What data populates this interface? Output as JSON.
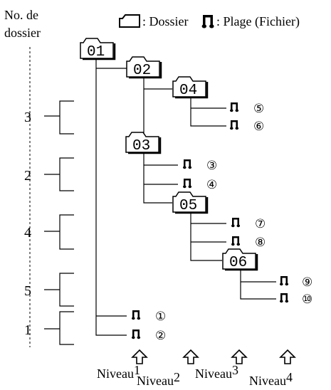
{
  "header": {
    "folder_number_label_line1": "No. de",
    "folder_number_label_line2": "dossier",
    "legend_folder_label": ": Dossier",
    "legend_track_label": ": Plage (Fichier)"
  },
  "folders": [
    {
      "id": "01",
      "label": "01"
    },
    {
      "id": "02",
      "label": "02"
    },
    {
      "id": "04",
      "label": "04"
    },
    {
      "id": "03",
      "label": "03"
    },
    {
      "id": "05",
      "label": "05"
    },
    {
      "id": "06",
      "label": "06"
    }
  ],
  "tracks": [
    {
      "id": "t5",
      "label": "⑤"
    },
    {
      "id": "t6",
      "label": "⑥"
    },
    {
      "id": "t3",
      "label": "③"
    },
    {
      "id": "t4",
      "label": "④"
    },
    {
      "id": "t7",
      "label": "⑦"
    },
    {
      "id": "t8",
      "label": "⑧"
    },
    {
      "id": "t9",
      "label": "⑨"
    },
    {
      "id": "t10",
      "label": "⑩"
    },
    {
      "id": "t1",
      "label": "①"
    },
    {
      "id": "t2",
      "label": "②"
    }
  ],
  "folder_numbers": [
    "3",
    "2",
    "4",
    "5",
    "1"
  ],
  "levels": [
    {
      "word": "Niveau",
      "num": "1"
    },
    {
      "word": "Niveau",
      "num": "2"
    },
    {
      "word": "Niveau",
      "num": "3"
    },
    {
      "word": "Niveau",
      "num": "4"
    }
  ],
  "icons": {
    "folder": "folder-icon",
    "track": "music-note-icon",
    "level_arrow": "up-arrow-icon"
  }
}
